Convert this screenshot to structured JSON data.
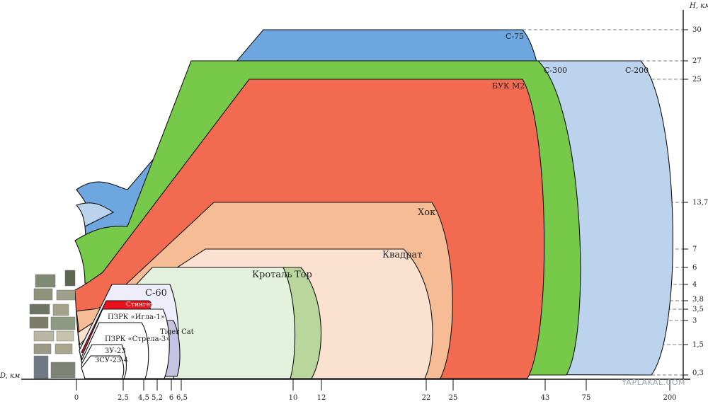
{
  "axes": {
    "h_label": "H, км",
    "d_label": "D, км",
    "h_ticks": [
      "30",
      "27",
      "25",
      "13,7",
      "7",
      "6",
      "4",
      "3,8",
      "3,5",
      "3",
      "1,5",
      "0,3"
    ],
    "d_ticks": [
      "0",
      "2,5",
      "4,5",
      "5,2",
      "6",
      "6,5",
      "10",
      "12",
      "22",
      "25",
      "43",
      "75",
      "200"
    ]
  },
  "systems": [
    {
      "id": "s75",
      "label": "С-75",
      "range_km": 43,
      "height_km": 30,
      "color": "#6ea6e0"
    },
    {
      "id": "s200",
      "label": "С-200",
      "range_km": 200,
      "height_km": 27,
      "color": "#bcd3ee"
    },
    {
      "id": "s300",
      "label": "С-300",
      "range_km": 75,
      "height_km": 27,
      "color": "#77c94a"
    },
    {
      "id": "buk",
      "label": "БУК М2",
      "range_km": 43,
      "height_km": 25,
      "color": "#f26b50"
    },
    {
      "id": "hawk",
      "label": "Хок",
      "range_km": 25,
      "height_km": 13.7,
      "color": "#f5bc95"
    },
    {
      "id": "kvadrat",
      "label": "Квадрат",
      "range_km": 22,
      "height_km": 7,
      "color": "#fae1d0"
    },
    {
      "id": "tor",
      "label": "Тор",
      "range_km": 12,
      "height_km": 6,
      "color": "#b9d79c"
    },
    {
      "id": "krotal",
      "label": "Кроталь",
      "range_km": 10,
      "height_km": 6,
      "color": "#e4f1dc"
    },
    {
      "id": "s60",
      "label": "С-60",
      "range_km": 6,
      "height_km": 4,
      "color": "#eeeefa"
    },
    {
      "id": "tigercat",
      "label": "Tiger Cat",
      "range_km": 6.5,
      "height_km": 3,
      "color": "#c4c3e2"
    },
    {
      "id": "stinger",
      "label": "Стингер",
      "range_km": 4.5,
      "height_km": 3.8,
      "color": "#e8141c"
    },
    {
      "id": "igla",
      "label": "ПЗРК «Игла-1»",
      "range_km": 5.2,
      "height_km": 3.5,
      "color": "#ffffff"
    },
    {
      "id": "strela",
      "label": "ПЗРК «Стрела-3»",
      "range_km": 4.5,
      "height_km": 3,
      "color": "#ffffff"
    },
    {
      "id": "zu23",
      "label": "ЗУ-23",
      "range_km": 2.5,
      "height_km": 1.5,
      "color": "#ffffff"
    },
    {
      "id": "zsu",
      "label": "ЗСУ-23-4",
      "range_km": 2.5,
      "height_km": 1.5,
      "color": "#ffffff"
    }
  ],
  "watermark": "YAPLAKAL.COM"
}
